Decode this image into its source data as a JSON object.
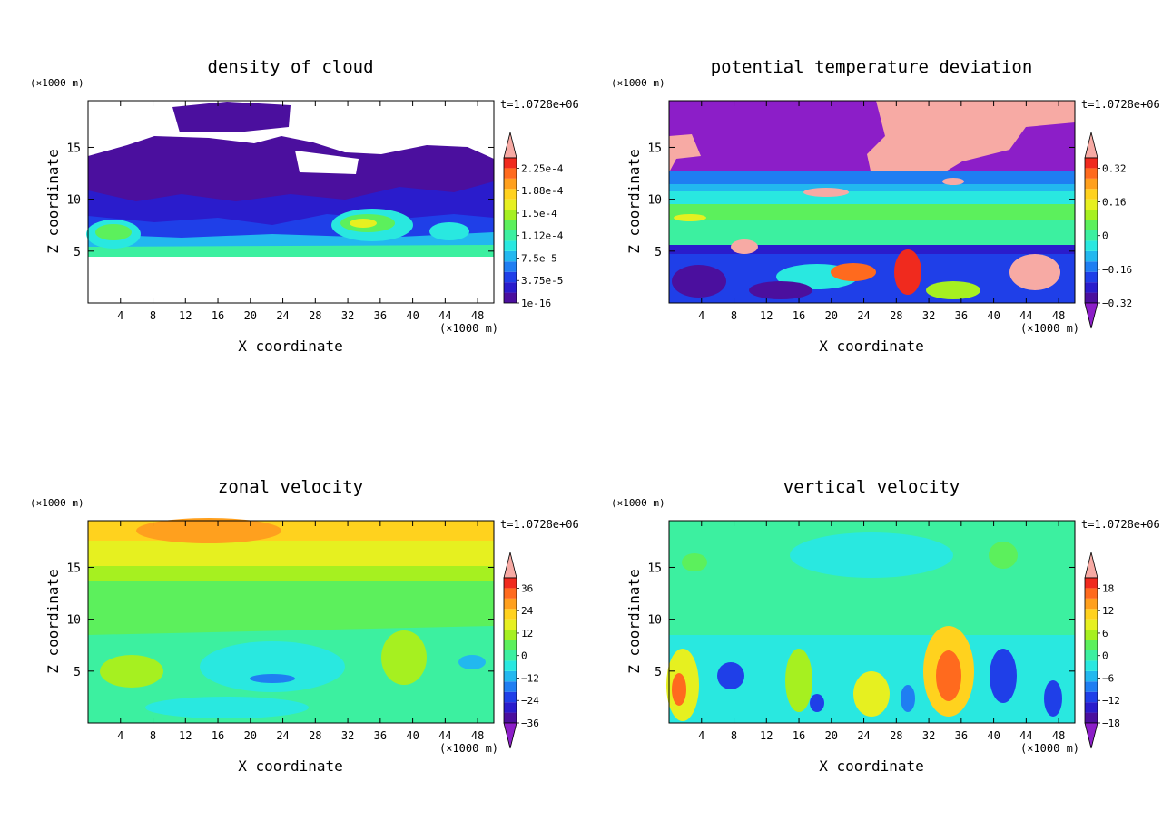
{
  "chart_data": [
    {
      "type": "heatmap",
      "title": "density of cloud",
      "xlabel": "X coordinate",
      "ylabel": "Z coordinate",
      "x_unit": "(×1000 m)",
      "y_unit": "(×1000 m)",
      "time_label": "t=1.0728e+06",
      "xlim": [
        0,
        50
      ],
      "ylim": [
        0,
        19.5
      ],
      "x_ticks": [
        4,
        8,
        12,
        16,
        20,
        24,
        28,
        32,
        36,
        40,
        44,
        48
      ],
      "y_ticks": [
        5,
        10,
        15
      ],
      "colorbar": {
        "labels": [
          "2.25e-4",
          "1.88e-4",
          "1.5e-4",
          "1.12e-4",
          "7.5e-5",
          "3.75e-5",
          "1e-16"
        ],
        "lower_arrow": false,
        "colors": [
          "#4b0f9e",
          "#2a1ccc",
          "#1f3fe8",
          "#1f7ef2",
          "#22b8ef",
          "#29e8e0",
          "#3cf0a0",
          "#5cf05c",
          "#a6f020",
          "#e6f020",
          "#ffd21e",
          "#ffa01e",
          "#ff6a1e",
          "#f02a1e",
          "#f7aaa4"
        ]
      }
    },
    {
      "type": "heatmap",
      "title": "potential temperature deviation",
      "xlabel": "X coordinate",
      "ylabel": "Z coordinate",
      "x_unit": "(×1000 m)",
      "y_unit": "(×1000 m)",
      "time_label": "t=1.0728e+06",
      "xlim": [
        0,
        50
      ],
      "ylim": [
        0,
        19.5
      ],
      "x_ticks": [
        4,
        8,
        12,
        16,
        20,
        24,
        28,
        32,
        36,
        40,
        44,
        48
      ],
      "y_ticks": [
        5,
        10,
        15
      ],
      "colorbar": {
        "labels": [
          "0.32",
          "0.16",
          "0",
          "−0.16",
          "−0.32"
        ],
        "lower_arrow": true,
        "colors": [
          "#8c1ec8",
          "#4b0f9e",
          "#2a1ccc",
          "#1f3fe8",
          "#1f7ef2",
          "#22b8ef",
          "#29e8e0",
          "#3cf0a0",
          "#5cf05c",
          "#a6f020",
          "#e6f020",
          "#ffd21e",
          "#ffa01e",
          "#ff6a1e",
          "#f02a1e",
          "#f7aaa4"
        ]
      }
    },
    {
      "type": "heatmap",
      "title": "zonal velocity",
      "xlabel": "X coordinate",
      "ylabel": "Z coordinate",
      "x_unit": "(×1000 m)",
      "y_unit": "(×1000 m)",
      "time_label": "t=1.0728e+06",
      "xlim": [
        0,
        50
      ],
      "ylim": [
        0,
        19.5
      ],
      "x_ticks": [
        4,
        8,
        12,
        16,
        20,
        24,
        28,
        32,
        36,
        40,
        44,
        48
      ],
      "y_ticks": [
        5,
        10,
        15
      ],
      "colorbar": {
        "labels": [
          "36",
          "24",
          "12",
          "0",
          "−12",
          "−24",
          "−36"
        ],
        "lower_arrow": true,
        "colors": [
          "#8c1ec8",
          "#4b0f9e",
          "#2a1ccc",
          "#1f3fe8",
          "#1f7ef2",
          "#22b8ef",
          "#29e8e0",
          "#3cf0a0",
          "#5cf05c",
          "#a6f020",
          "#e6f020",
          "#ffd21e",
          "#ffa01e",
          "#ff6a1e",
          "#f02a1e",
          "#f7aaa4"
        ]
      }
    },
    {
      "type": "heatmap",
      "title": "vertical velocity",
      "xlabel": "X coordinate",
      "ylabel": "Z coordinate",
      "x_unit": "(×1000 m)",
      "y_unit": "(×1000 m)",
      "time_label": "t=1.0728e+06",
      "xlim": [
        0,
        50
      ],
      "ylim": [
        0,
        19.5
      ],
      "x_ticks": [
        4,
        8,
        12,
        16,
        20,
        24,
        28,
        32,
        36,
        40,
        44,
        48
      ],
      "y_ticks": [
        5,
        10,
        15
      ],
      "colorbar": {
        "labels": [
          "18",
          "12",
          "6",
          "0",
          "−6",
          "−12",
          "−18"
        ],
        "lower_arrow": true,
        "colors": [
          "#8c1ec8",
          "#4b0f9e",
          "#2a1ccc",
          "#1f3fe8",
          "#1f7ef2",
          "#22b8ef",
          "#29e8e0",
          "#3cf0a0",
          "#5cf05c",
          "#a6f020",
          "#e6f020",
          "#ffd21e",
          "#ffa01e",
          "#ff6a1e",
          "#f02a1e",
          "#f7aaa4"
        ]
      }
    }
  ]
}
